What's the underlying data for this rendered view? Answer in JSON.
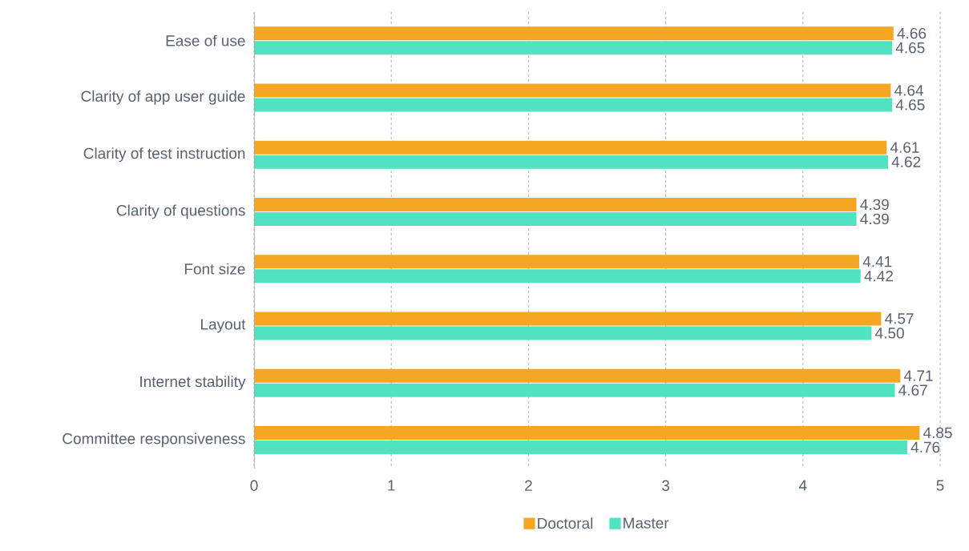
{
  "chart_data": {
    "type": "bar",
    "orientation": "horizontal",
    "categories": [
      "Ease of use",
      "Clarity of app user guide",
      "Clarity of test instruction",
      "Clarity of questions",
      "Font size",
      "Layout",
      "Internet stability",
      "Committee responsiveness"
    ],
    "series": [
      {
        "name": "Doctoral",
        "color": "#f5a623",
        "values": [
          4.66,
          4.64,
          4.61,
          4.39,
          4.41,
          4.57,
          4.71,
          4.85
        ],
        "value_labels": [
          "4.66",
          "4.64",
          "4.61",
          "4.39",
          "4.41",
          "4.57",
          "4.71",
          "4.85"
        ]
      },
      {
        "name": "Master",
        "color": "#50e3c2",
        "values": [
          4.65,
          4.65,
          4.62,
          4.39,
          4.42,
          4.5,
          4.67,
          4.76
        ],
        "value_labels": [
          "4.65",
          "4.65",
          "4.62",
          "4.39",
          "4.42",
          "4.50",
          "4.67",
          "4.76"
        ]
      }
    ],
    "xlim": [
      0,
      5
    ],
    "xticks": [
      0,
      1,
      2,
      3,
      4,
      5
    ],
    "grid": "x",
    "legend": "bottom"
  }
}
